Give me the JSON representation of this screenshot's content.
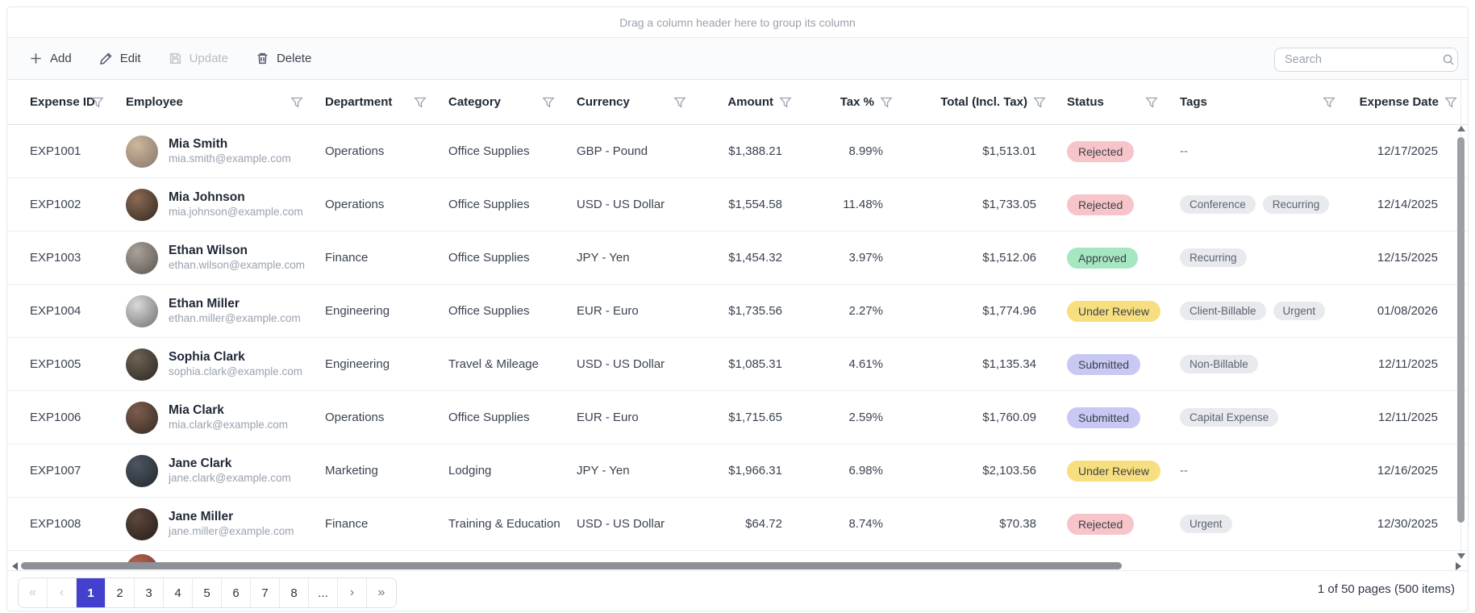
{
  "group_panel": {
    "text": "Drag a column header here to group its column"
  },
  "toolbar": {
    "buttons": [
      {
        "label": "Add",
        "icon": "plus-icon",
        "disabled": false
      },
      {
        "label": "Edit",
        "icon": "pencil-icon",
        "disabled": false
      },
      {
        "label": "Update",
        "icon": "save-icon",
        "disabled": true
      },
      {
        "label": "Delete",
        "icon": "trash-icon",
        "disabled": false
      }
    ],
    "search": {
      "placeholder": "Search",
      "value": ""
    }
  },
  "columns": [
    {
      "key": "expense_id",
      "label": "Expense ID"
    },
    {
      "key": "employee",
      "label": "Employee"
    },
    {
      "key": "department",
      "label": "Department"
    },
    {
      "key": "category",
      "label": "Category"
    },
    {
      "key": "currency",
      "label": "Currency"
    },
    {
      "key": "amount",
      "label": "Amount"
    },
    {
      "key": "tax",
      "label": "Tax %"
    },
    {
      "key": "total",
      "label": "Total (Incl. Tax)"
    },
    {
      "key": "status",
      "label": "Status"
    },
    {
      "key": "tags",
      "label": "Tags"
    },
    {
      "key": "date",
      "label": "Expense Date"
    }
  ],
  "rows": [
    {
      "expense_id": "EXP1001",
      "name": "Mia Smith",
      "email": "mia.smith@example.com",
      "department": "Operations",
      "category": "Office Supplies",
      "currency": "GBP - Pound",
      "amount": "$1,388.21",
      "tax": "8.99%",
      "total": "$1,513.01",
      "status": "Rejected",
      "tags": [],
      "date": "12/17/2025",
      "avatar_colors": [
        "#cdb69c",
        "#84776b"
      ]
    },
    {
      "expense_id": "EXP1002",
      "name": "Mia Johnson",
      "email": "mia.johnson@example.com",
      "department": "Operations",
      "category": "Office Supplies",
      "currency": "USD - US Dollar",
      "amount": "$1,554.58",
      "tax": "11.48%",
      "total": "$1,733.05",
      "status": "Rejected",
      "tags": [
        "Conference",
        "Recurring"
      ],
      "date": "12/14/2025",
      "avatar_colors": [
        "#8a6a55",
        "#32281f"
      ]
    },
    {
      "expense_id": "EXP1003",
      "name": "Ethan Wilson",
      "email": "ethan.wilson@example.com",
      "department": "Finance",
      "category": "Office Supplies",
      "currency": "JPY - Yen",
      "amount": "$1,454.32",
      "tax": "3.97%",
      "total": "$1,512.06",
      "status": "Approved",
      "tags": [
        "Recurring"
      ],
      "date": "12/15/2025",
      "avatar_colors": [
        "#a8a29a",
        "#5a544d"
      ]
    },
    {
      "expense_id": "EXP1004",
      "name": "Ethan Miller",
      "email": "ethan.miller@example.com",
      "department": "Engineering",
      "category": "Office Supplies",
      "currency": "EUR - Euro",
      "amount": "$1,735.56",
      "tax": "2.27%",
      "total": "$1,774.96",
      "status": "Under Review",
      "tags": [
        "Client-Billable",
        "Urgent"
      ],
      "date": "01/08/2026",
      "avatar_colors": [
        "#d9d9d9",
        "#6f6f6f"
      ]
    },
    {
      "expense_id": "EXP1005",
      "name": "Sophia Clark",
      "email": "sophia.clark@example.com",
      "department": "Engineering",
      "category": "Travel & Mileage",
      "currency": "USD - US Dollar",
      "amount": "$1,085.31",
      "tax": "4.61%",
      "total": "$1,135.34",
      "status": "Submitted",
      "tags": [
        "Non-Billable"
      ],
      "date": "12/11/2025",
      "avatar_colors": [
        "#6e6354",
        "#2b2620"
      ]
    },
    {
      "expense_id": "EXP1006",
      "name": "Mia Clark",
      "email": "mia.clark@example.com",
      "department": "Operations",
      "category": "Office Supplies",
      "currency": "EUR - Euro",
      "amount": "$1,715.65",
      "tax": "2.59%",
      "total": "$1,760.09",
      "status": "Submitted",
      "tags": [
        "Capital Expense"
      ],
      "date": "12/11/2025",
      "avatar_colors": [
        "#7d5d4e",
        "#362a24"
      ]
    },
    {
      "expense_id": "EXP1007",
      "name": "Jane Clark",
      "email": "jane.clark@example.com",
      "department": "Marketing",
      "category": "Lodging",
      "currency": "JPY - Yen",
      "amount": "$1,966.31",
      "tax": "6.98%",
      "total": "$2,103.56",
      "status": "Under Review",
      "tags": [],
      "date": "12/16/2025",
      "avatar_colors": [
        "#4c5661",
        "#22272d"
      ]
    },
    {
      "expense_id": "EXP1008",
      "name": "Jane Miller",
      "email": "jane.miller@example.com",
      "department": "Finance",
      "category": "Training & Education",
      "currency": "USD - US Dollar",
      "amount": "$64.72",
      "tax": "8.74%",
      "total": "$70.38",
      "status": "Rejected",
      "tags": [
        "Urgent"
      ],
      "date": "12/30/2025",
      "avatar_colors": [
        "#5d473c",
        "#241d19"
      ]
    }
  ],
  "empty_tags_text": "--",
  "status_colors": {
    "Rejected": "#f6c4c9",
    "Approved": "#a6e7c1",
    "Under Review": "#f7df7f",
    "Submitted": "#c7c9f4"
  },
  "partial_row_avatar_colors": [
    "#b0614f",
    "#7c3a2e"
  ],
  "pager": {
    "first_label": "«",
    "prev_label": "‹",
    "pages": [
      "1",
      "2",
      "3",
      "4",
      "5",
      "6",
      "7",
      "8",
      "..."
    ],
    "active_page": "1",
    "next_label": "›",
    "last_label": "»",
    "info": "1 of 50 pages (500 items)"
  }
}
